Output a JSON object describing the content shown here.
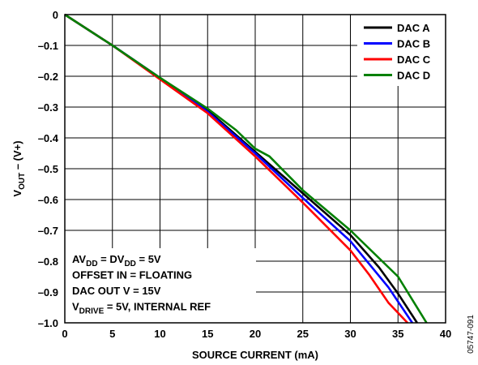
{
  "chart_data": {
    "type": "line",
    "xlabel": "SOURCE CURRENT (mA)",
    "ylabel": {
      "main": "V",
      "sub": "OUT",
      "rest": " – (V+)"
    },
    "xlim": [
      0,
      40
    ],
    "ylim": [
      -1.0,
      0
    ],
    "x_ticks": [
      0,
      5,
      10,
      15,
      20,
      25,
      30,
      35,
      40
    ],
    "x_tick_labels": [
      "0",
      "5",
      "10",
      "15",
      "20",
      "25",
      "30",
      "35",
      "40"
    ],
    "y_ticks": [
      0,
      -0.1,
      -0.2,
      -0.3,
      -0.4,
      -0.5,
      -0.6,
      -0.7,
      -0.8,
      -0.9,
      -1.0
    ],
    "y_tick_labels": [
      "0",
      "–0.1",
      "–0.2",
      "–0.3",
      "–0.4",
      "–0.5",
      "–0.6",
      "–0.7",
      "–0.8",
      "–0.9",
      "–1.0"
    ],
    "grid": true,
    "legend_position": "top-right",
    "series": [
      {
        "name": "DAC A",
        "color": "#000000",
        "x": [
          0,
          5,
          10,
          15,
          20,
          25,
          30,
          33,
          35,
          37
        ],
        "y": [
          0,
          -0.1,
          -0.205,
          -0.31,
          -0.445,
          -0.58,
          -0.715,
          -0.82,
          -0.905,
          -1.0
        ]
      },
      {
        "name": "DAC B",
        "color": "#0000ff",
        "x": [
          0,
          5,
          10,
          15,
          20,
          25,
          30,
          32,
          34,
          36.5
        ],
        "y": [
          0,
          -0.1,
          -0.205,
          -0.315,
          -0.45,
          -0.595,
          -0.735,
          -0.81,
          -0.885,
          -1.0
        ]
      },
      {
        "name": "DAC C",
        "color": "#ff0000",
        "x": [
          0,
          5,
          10,
          15,
          20,
          25,
          30,
          32,
          34,
          36
        ],
        "y": [
          0,
          -0.1,
          -0.21,
          -0.32,
          -0.46,
          -0.61,
          -0.765,
          -0.845,
          -0.935,
          -1.0
        ]
      },
      {
        "name": "DAC D",
        "color": "#008000",
        "x": [
          0,
          5,
          10,
          15,
          18,
          20,
          21.5,
          25,
          30,
          35,
          38
        ],
        "y": [
          0,
          -0.1,
          -0.205,
          -0.305,
          -0.375,
          -0.435,
          -0.46,
          -0.57,
          -0.7,
          -0.85,
          -1.0
        ]
      }
    ],
    "annotation_lines": [
      {
        "parts": [
          [
            "AV",
            "n"
          ],
          [
            "DD",
            "s"
          ],
          [
            " = DV",
            "n"
          ],
          [
            "DD",
            "s"
          ],
          [
            " = 5V",
            "n"
          ]
        ]
      },
      {
        "parts": [
          [
            "OFFSET IN = FLOATING",
            "n"
          ]
        ]
      },
      {
        "parts": [
          [
            "DAC OUT V = 15V",
            "n"
          ]
        ]
      },
      {
        "parts": [
          [
            "V",
            "n"
          ],
          [
            "DRIVE",
            "s"
          ],
          [
            " = 5V, INTERNAL REF",
            "n"
          ]
        ]
      }
    ],
    "figure_id": "05747-091"
  }
}
